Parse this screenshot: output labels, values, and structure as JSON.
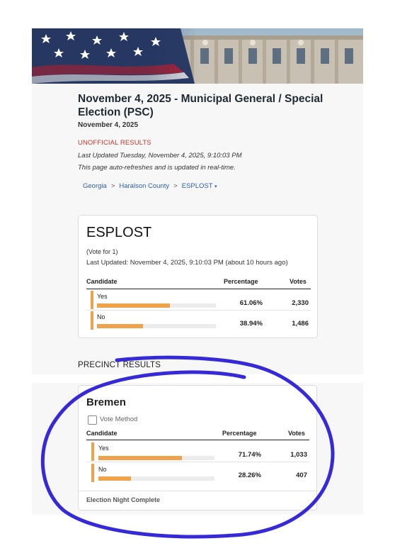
{
  "election": {
    "title": "November 4, 2025 - Municipal General / Special Election (PSC)",
    "date": "November 4, 2025",
    "status": "UNOFFICIAL RESULTS",
    "last_updated": "Last Updated Tuesday, November 4, 2025, 9:10:03 PM",
    "auto_refresh": "This page auto-refreshes and is updated in real-time."
  },
  "breadcrumb": {
    "items": [
      "Georgia",
      "Haralson County",
      "ESPLOST"
    ],
    "separator": ">",
    "caret": "▾"
  },
  "contest": {
    "name": "ESPLOST",
    "vote_for": "(Vote for 1)",
    "updated": "Last Updated: November 4, 2025, 9:10:03 PM (about 10 hours ago)",
    "headers": {
      "candidate": "Candidate",
      "percentage": "Percentage",
      "votes": "Votes"
    },
    "rows": [
      {
        "candidate": "Yes",
        "percentage": "61.06%",
        "votes": "2,330",
        "share": 0.6106
      },
      {
        "candidate": "No",
        "percentage": "38.94%",
        "votes": "1,486",
        "share": 0.3894
      }
    ]
  },
  "precinct_section": {
    "heading": "PRECINCT RESULTS"
  },
  "precinct": {
    "name": "Bremen",
    "vote_method_label": "Vote Method",
    "headers": {
      "candidate": "Candidate",
      "percentage": "Percentage",
      "votes": "Votes"
    },
    "rows": [
      {
        "candidate": "Yes",
        "percentage": "71.74%",
        "votes": "1,033",
        "share": 0.7174
      },
      {
        "candidate": "No",
        "percentage": "28.26%",
        "votes": "407",
        "share": 0.2826
      }
    ],
    "footer": "Election Night Complete"
  },
  "colors": {
    "bar": "#f0a24a",
    "link": "#2e5fa8",
    "unofficial": "#c0392b",
    "annotation": "#2b1fd6"
  }
}
